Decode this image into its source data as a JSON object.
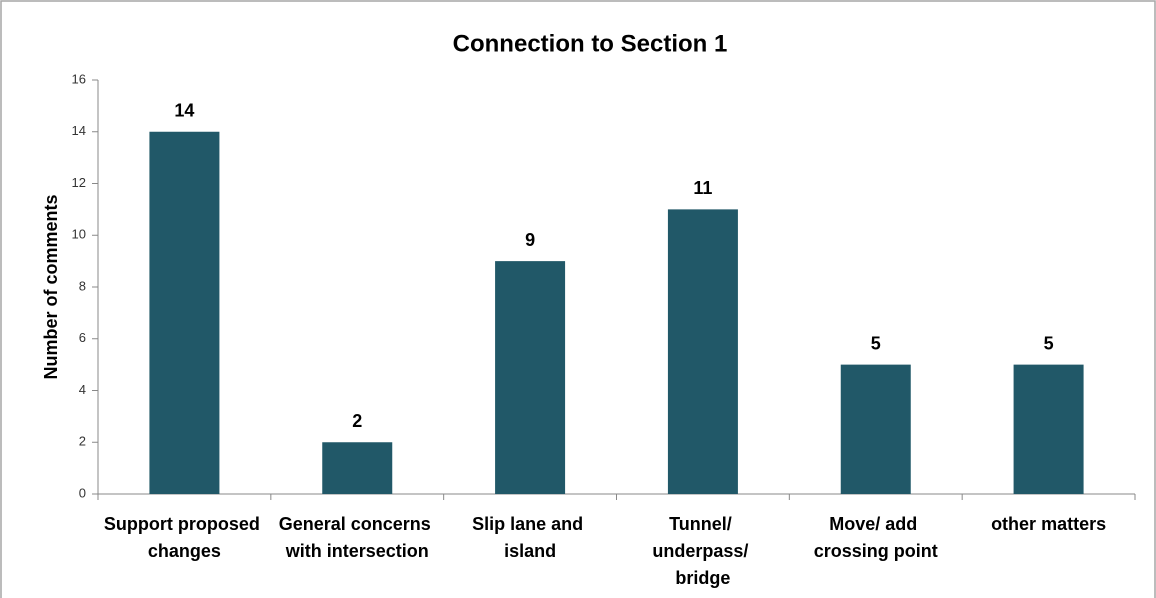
{
  "chart_data": {
    "type": "bar",
    "title": "Connection to Section 1",
    "y_label": "Number of comments",
    "categories": [
      "Support proposed\nchanges",
      "General concerns\nwith intersection",
      "Slip lane and\nisland",
      "Tunnel/\nunderpass/\nbridge",
      "Move/ add\ncrossing point",
      "other matters"
    ],
    "values": [
      14,
      2,
      9,
      11,
      5,
      5
    ],
    "color": "#215868",
    "ylim": [
      0,
      16
    ],
    "yticks": [
      0,
      2,
      4,
      6,
      8,
      10,
      12,
      14,
      16
    ],
    "grid": false
  }
}
